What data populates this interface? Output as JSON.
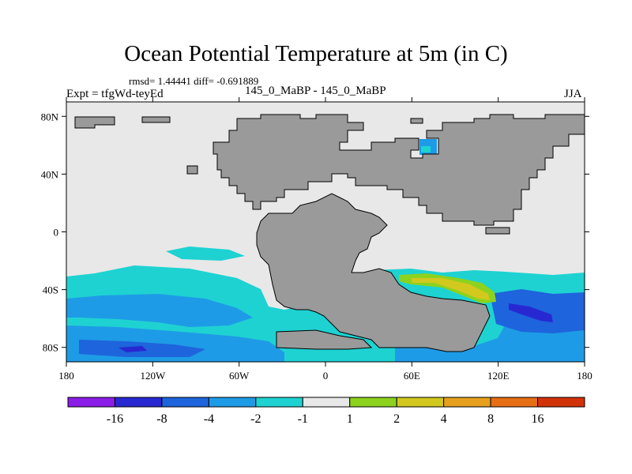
{
  "title": "Ocean Potential Temperature at 5m (in C)",
  "stats": "rmsd= 1.44441 diff= -0.691889",
  "experiment": "Expt = tfgWd-teyEd",
  "comparison": "145_0_MaBP - 145_0_MaBP",
  "season": "JJA",
  "lon_ticks": [
    "180",
    "120W",
    "60W",
    "0",
    "60E",
    "120E",
    "180"
  ],
  "lat_ticks": [
    "80N",
    "40N",
    "0",
    "40S",
    "80S"
  ],
  "colors": {
    "land": "#9a9a9a",
    "neutral": "#e8e8e8"
  },
  "colorbar": {
    "labels": [
      "-16",
      "-8",
      "-4",
      "-2",
      "-1",
      "1",
      "2",
      "4",
      "8",
      "16"
    ],
    "colors": [
      "#8a1ee6",
      "#2828d2",
      "#1e64dc",
      "#1e9be6",
      "#1ed2d2",
      "#e8e8e8",
      "#8cd21e",
      "#d2c81e",
      "#e6a01e",
      "#e66e14",
      "#d2320a"
    ]
  }
}
